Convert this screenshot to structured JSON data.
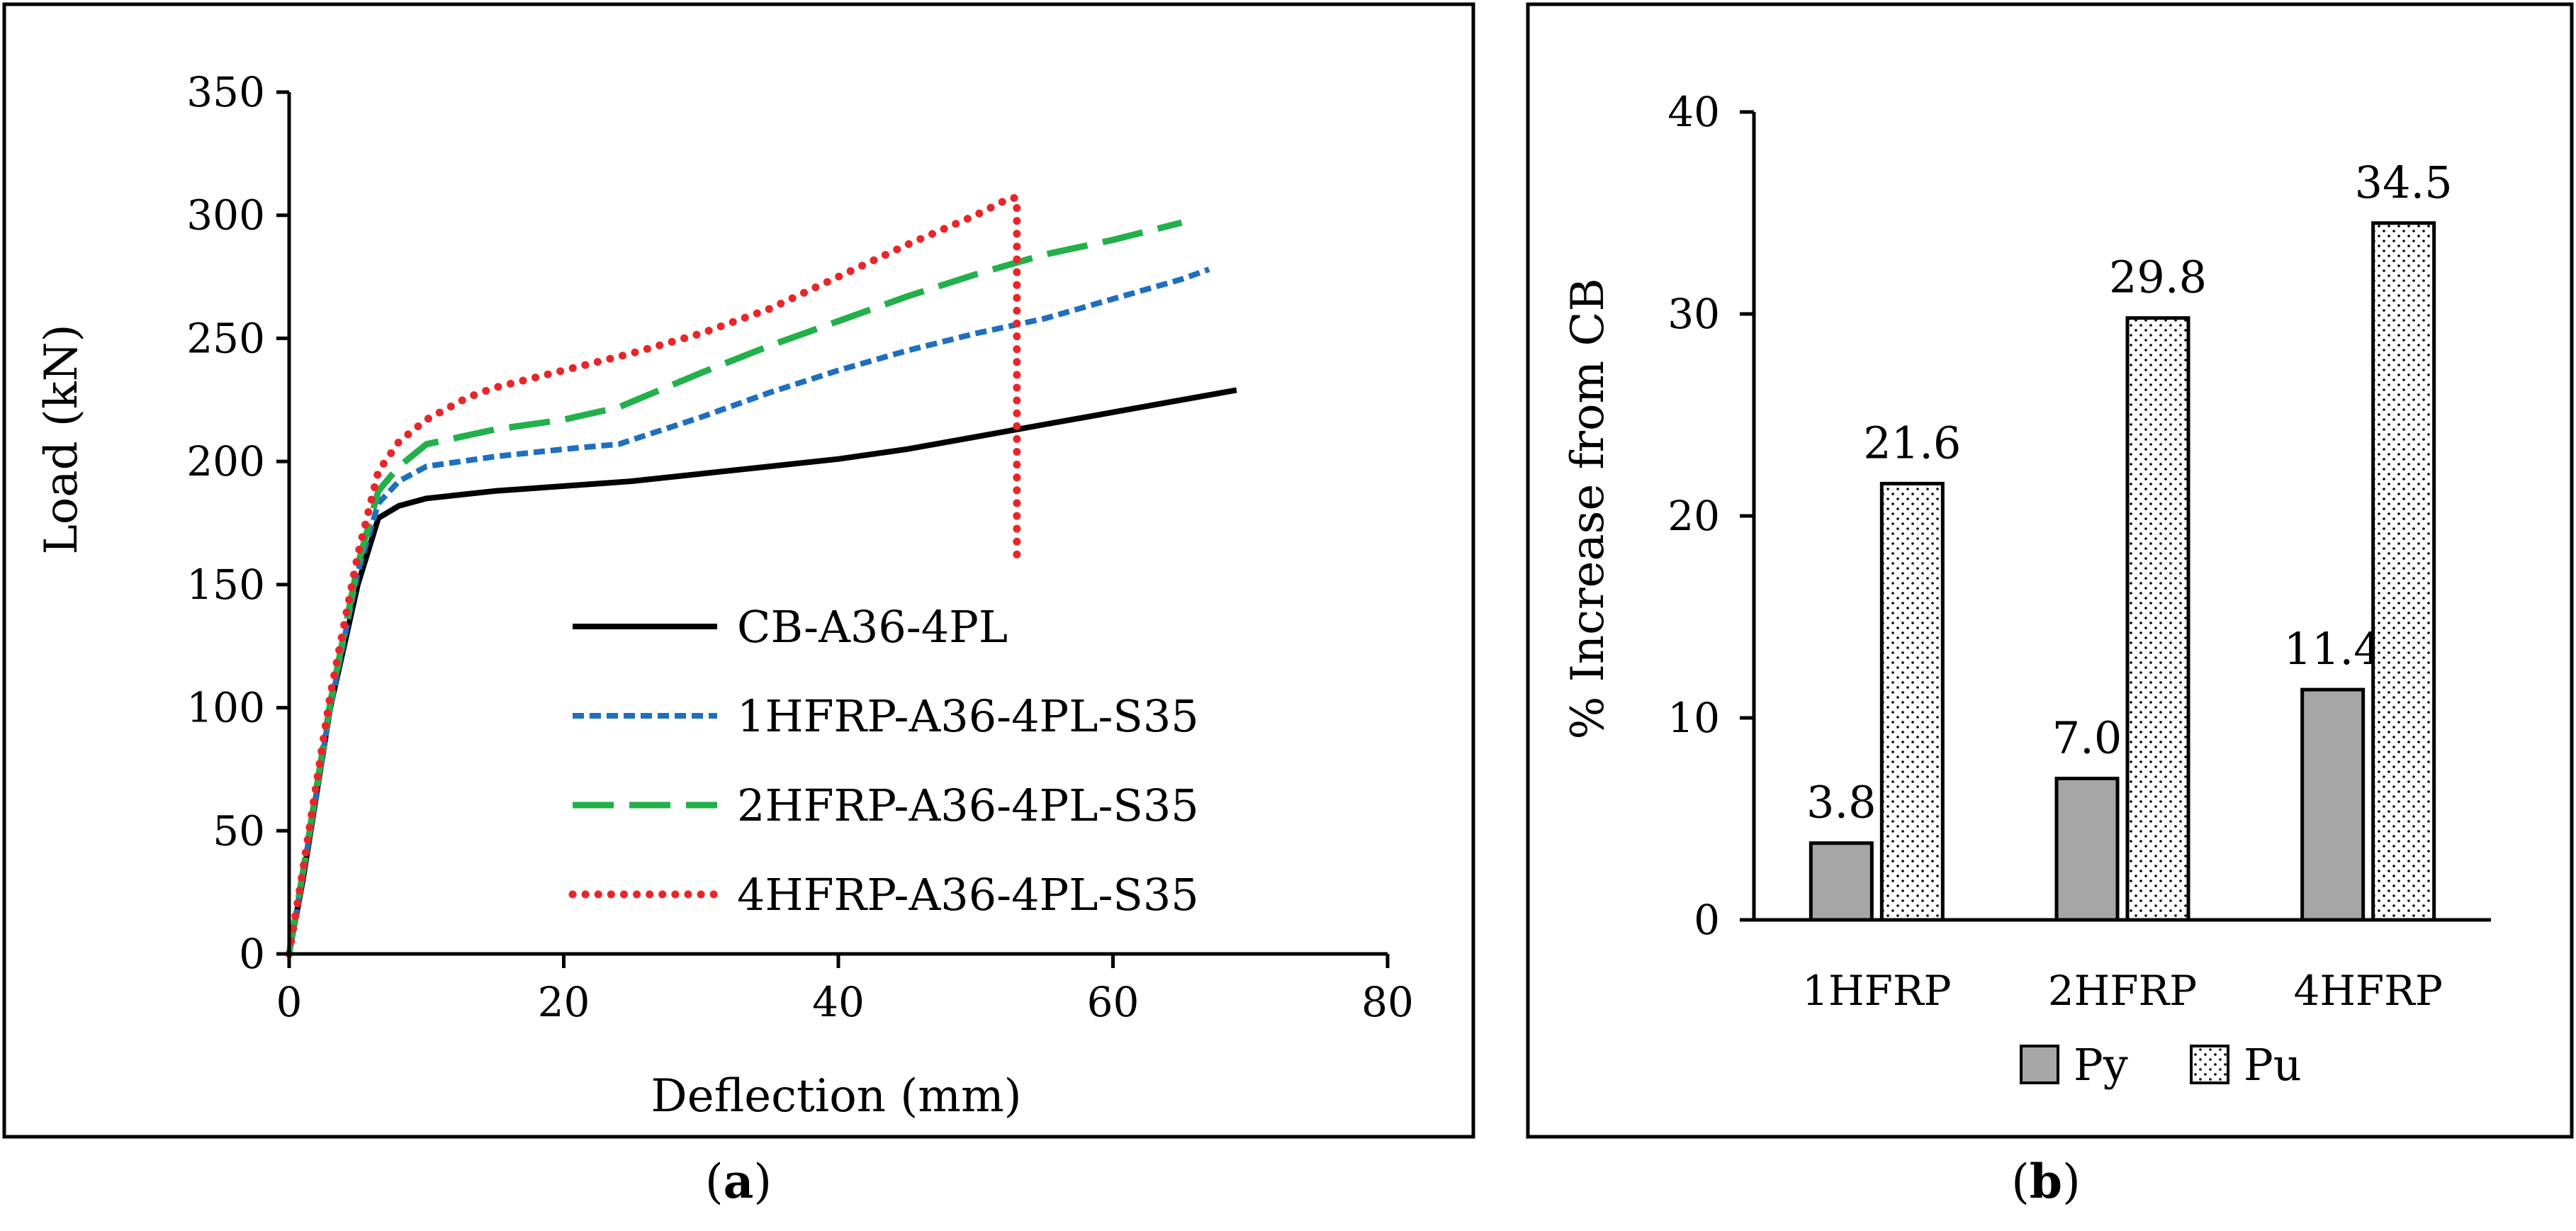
{
  "chart_data": [
    {
      "type": "line",
      "panel": "a",
      "caption_open": "(",
      "caption_letter": "a",
      "caption_close": ")",
      "xlabel": "Deflection (mm)",
      "ylabel": "Load (kN)",
      "xlim": [
        0,
        80
      ],
      "ylim": [
        0,
        350
      ],
      "xticks": [
        0,
        20,
        40,
        60,
        80
      ],
      "yticks": [
        0,
        50,
        100,
        150,
        200,
        250,
        300,
        350
      ],
      "grid": false,
      "legend_position": "center-right",
      "series": [
        {
          "name": "CB-A36-4PL",
          "style": "solid",
          "color": "#000000",
          "points": [
            [
              0,
              0
            ],
            [
              1,
              30
            ],
            [
              3,
              100
            ],
            [
              5,
              150
            ],
            [
              6.5,
              177
            ],
            [
              8,
              182
            ],
            [
              10,
              185
            ],
            [
              15,
              188
            ],
            [
              20,
              190
            ],
            [
              25,
              192
            ],
            [
              30,
              195
            ],
            [
              35,
              198
            ],
            [
              40,
              201
            ],
            [
              45,
              205
            ],
            [
              50,
              210
            ],
            [
              55,
              215
            ],
            [
              60,
              220
            ],
            [
              65,
              225
            ],
            [
              69,
              229
            ]
          ]
        },
        {
          "name": "1HFRP-A36-4PL-S35",
          "style": "dashed",
          "color": "#1f6fbf",
          "points": [
            [
              0,
              0
            ],
            [
              1,
              32
            ],
            [
              3,
              100
            ],
            [
              5,
              155
            ],
            [
              6.5,
              183
            ],
            [
              8,
              192
            ],
            [
              10,
              198
            ],
            [
              15,
              202
            ],
            [
              20,
              205
            ],
            [
              24,
              207
            ],
            [
              30,
              218
            ],
            [
              35,
              228
            ],
            [
              40,
              237
            ],
            [
              45,
              245
            ],
            [
              50,
              252
            ],
            [
              55,
              258
            ],
            [
              60,
              266
            ],
            [
              65,
              274
            ],
            [
              67,
              278
            ]
          ]
        },
        {
          "name": "2HFRP-A36-4PL-S35",
          "style": "long-dash",
          "color": "#22b04a",
          "points": [
            [
              0,
              0
            ],
            [
              1,
              33
            ],
            [
              3,
              102
            ],
            [
              5,
              158
            ],
            [
              6.5,
              188
            ],
            [
              8,
              198
            ],
            [
              10,
              207
            ],
            [
              15,
              213
            ],
            [
              20,
              217
            ],
            [
              24,
              222
            ],
            [
              30,
              236
            ],
            [
              35,
              247
            ],
            [
              40,
              257
            ],
            [
              45,
              267
            ],
            [
              50,
              276
            ],
            [
              55,
              284
            ],
            [
              60,
              290
            ],
            [
              65,
              297
            ]
          ]
        },
        {
          "name": "4HFRP-A36-4PL-S35",
          "style": "dotted",
          "color": "#e8262a",
          "points": [
            [
              0,
              0
            ],
            [
              1,
              34
            ],
            [
              3,
              105
            ],
            [
              5,
              162
            ],
            [
              6.5,
              196
            ],
            [
              8,
              208
            ],
            [
              10,
              217
            ],
            [
              13,
              226
            ],
            [
              15,
              230
            ],
            [
              20,
              237
            ],
            [
              25,
              244
            ],
            [
              30,
              252
            ],
            [
              35,
              262
            ],
            [
              40,
              275
            ],
            [
              45,
              288
            ],
            [
              50,
              300
            ],
            [
              52.5,
              307
            ],
            [
              53,
              307
            ],
            [
              53,
              160
            ]
          ]
        }
      ]
    },
    {
      "type": "bar",
      "panel": "b",
      "caption_open": "(",
      "caption_letter": "b",
      "caption_close": ")",
      "xlabel": "",
      "ylabel": "% Increase from CB",
      "ylim": [
        0,
        40
      ],
      "yticks": [
        0,
        10,
        20,
        30,
        40
      ],
      "grid": false,
      "legend_position": "bottom",
      "categories": [
        "1HFRP",
        "2HFRP",
        "4HFRP"
      ],
      "series": [
        {
          "name": "Py",
          "fill": "#a6a6a6",
          "pattern": "solid",
          "values": [
            3.8,
            7.0,
            11.4
          ],
          "labels": [
            "3.8",
            "7.0",
            "11.4"
          ]
        },
        {
          "name": "Pu",
          "fill": "#ffffff",
          "pattern": "dotted",
          "values": [
            21.6,
            29.8,
            34.5
          ],
          "labels": [
            "21.6",
            "29.8",
            "34.5"
          ]
        }
      ]
    }
  ]
}
